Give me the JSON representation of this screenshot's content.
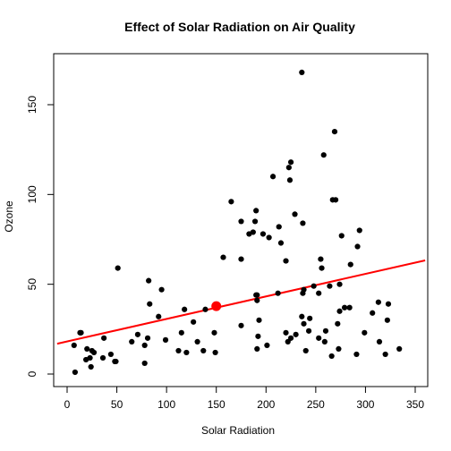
{
  "chart_data": {
    "type": "scatter",
    "title": "Effect of Solar Radiation on Air Quality",
    "xlabel": "Solar Radiation",
    "ylabel": "Ozone",
    "xlim": [
      0,
      350
    ],
    "ylim": [
      0,
      150
    ],
    "x_ticks": [
      "0",
      "50",
      "100",
      "150",
      "200",
      "250",
      "300",
      "350"
    ],
    "y_ticks": [
      "0",
      "50",
      "100",
      "150"
    ],
    "x_tick_values": [
      0,
      50,
      100,
      150,
      200,
      250,
      300,
      350
    ],
    "y_tick_values": [
      0,
      50,
      100,
      150
    ],
    "grid": false,
    "point_color": "#000000",
    "line_color": "#ff0000",
    "highlight_color": "#ff0000",
    "points": [
      [
        7,
        16
      ],
      [
        8,
        1
      ],
      [
        13,
        23
      ],
      [
        14,
        23
      ],
      [
        19,
        8
      ],
      [
        20,
        14
      ],
      [
        23,
        9
      ],
      [
        24,
        4
      ],
      [
        25,
        13
      ],
      [
        27,
        12
      ],
      [
        36,
        9
      ],
      [
        37,
        20
      ],
      [
        44,
        11
      ],
      [
        48,
        7
      ],
      [
        49,
        7
      ],
      [
        51,
        59
      ],
      [
        65,
        18
      ],
      [
        71,
        22
      ],
      [
        78,
        16
      ],
      [
        78,
        6
      ],
      [
        81,
        20
      ],
      [
        82,
        52
      ],
      [
        83,
        39
      ],
      [
        92,
        32
      ],
      [
        95,
        47
      ],
      [
        99,
        19
      ],
      [
        112,
        13
      ],
      [
        115,
        23
      ],
      [
        118,
        36
      ],
      [
        120,
        12
      ],
      [
        127,
        29
      ],
      [
        131,
        18
      ],
      [
        137,
        13
      ],
      [
        139,
        36
      ],
      [
        148,
        23
      ],
      [
        149,
        12
      ],
      [
        150,
        37
      ],
      [
        157,
        65
      ],
      [
        165,
        96
      ],
      [
        175,
        85
      ],
      [
        175,
        64
      ],
      [
        175,
        27
      ],
      [
        183,
        78
      ],
      [
        187,
        79
      ],
      [
        189,
        85
      ],
      [
        190,
        91
      ],
      [
        190,
        44
      ],
      [
        191,
        41
      ],
      [
        191,
        14
      ],
      [
        191,
        44
      ],
      [
        192,
        21
      ],
      [
        193,
        30
      ],
      [
        197,
        78
      ],
      [
        201,
        16
      ],
      [
        203,
        76
      ],
      [
        207,
        110
      ],
      [
        212,
        45
      ],
      [
        213,
        82
      ],
      [
        215,
        73
      ],
      [
        220,
        63
      ],
      [
        220,
        23
      ],
      [
        222,
        18
      ],
      [
        223,
        115
      ],
      [
        224,
        108
      ],
      [
        225,
        118
      ],
      [
        225,
        20
      ],
      [
        229,
        89
      ],
      [
        230,
        22
      ],
      [
        236,
        168
      ],
      [
        236,
        32
      ],
      [
        237,
        45
      ],
      [
        237,
        84
      ],
      [
        238,
        28
      ],
      [
        238,
        47
      ],
      [
        240,
        13
      ],
      [
        243,
        24
      ],
      [
        244,
        31
      ],
      [
        248,
        49
      ],
      [
        253,
        45
      ],
      [
        253,
        20
      ],
      [
        255,
        64
      ],
      [
        256,
        59
      ],
      [
        258,
        122
      ],
      [
        259,
        18
      ],
      [
        260,
        24
      ],
      [
        264,
        49
      ],
      [
        266,
        10
      ],
      [
        267,
        97
      ],
      [
        269,
        135
      ],
      [
        270,
        97
      ],
      [
        272,
        28
      ],
      [
        273,
        14
      ],
      [
        274,
        35
      ],
      [
        274,
        50
      ],
      [
        276,
        77
      ],
      [
        279,
        37
      ],
      [
        284,
        37
      ],
      [
        285,
        61
      ],
      [
        291,
        11
      ],
      [
        292,
        71
      ],
      [
        294,
        80
      ],
      [
        299,
        23
      ],
      [
        307,
        34
      ],
      [
        313,
        40
      ],
      [
        314,
        18
      ],
      [
        320,
        11
      ],
      [
        322,
        30
      ],
      [
        323,
        39
      ],
      [
        334,
        14
      ]
    ],
    "regression_line": {
      "x": [
        -10,
        360
      ],
      "y": [
        16.9,
        63.3
      ]
    },
    "highlight_point": {
      "x": 150,
      "y": 37.8
    }
  }
}
